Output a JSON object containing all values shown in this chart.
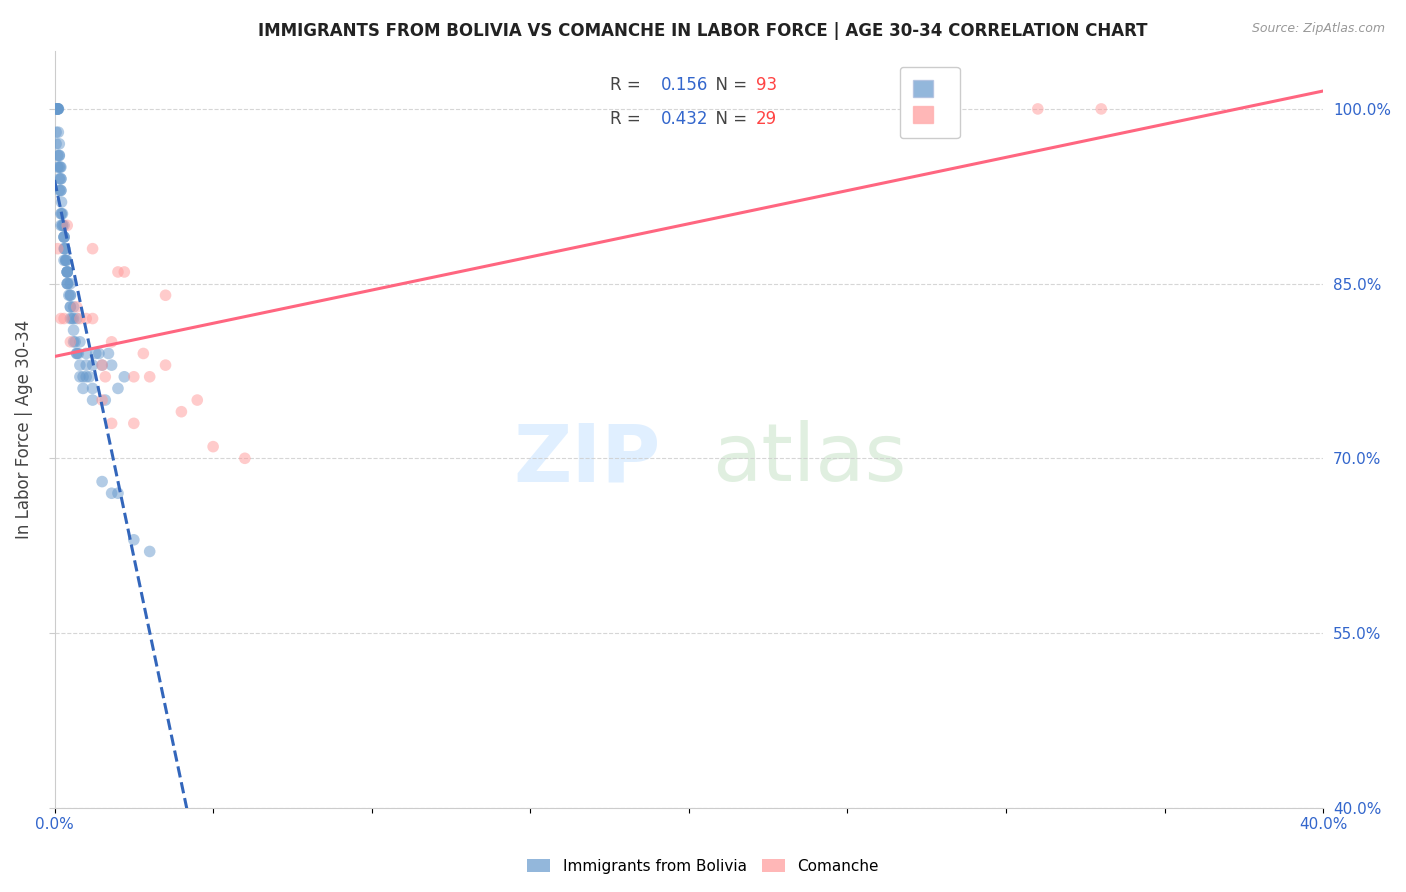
{
  "title": "IMMIGRANTS FROM BOLIVIA VS COMANCHE IN LABOR FORCE | AGE 30-34 CORRELATION CHART",
  "source": "Source: ZipAtlas.com",
  "ylabel": "In Labor Force | Age 30-34",
  "xlim": [
    0.0,
    0.4
  ],
  "ylim": [
    0.4,
    1.05
  ],
  "xticks": [
    0.0,
    0.05,
    0.1,
    0.15,
    0.2,
    0.25,
    0.3,
    0.35,
    0.4
  ],
  "xticklabels": [
    "0.0%",
    "",
    "",
    "",
    "",
    "",
    "",
    "",
    "40.0%"
  ],
  "yticks": [
    0.4,
    0.55,
    0.7,
    0.85,
    1.0
  ],
  "yticklabels": [
    "40.0%",
    "55.0%",
    "70.0%",
    "85.0%",
    "100.0%"
  ],
  "bolivia_R": 0.156,
  "bolivia_N": 93,
  "comanche_R": 0.432,
  "comanche_N": 29,
  "bolivia_color": "#6699CC",
  "comanche_color": "#FF9999",
  "bolivia_line_color": "#3366BB",
  "comanche_line_color": "#FF6680",
  "bolivia_scatter_alpha": 0.5,
  "comanche_scatter_alpha": 0.5,
  "marker_size": 70,
  "bolivia_x": [
    0.0005,
    0.0005,
    0.0008,
    0.001,
    0.001,
    0.001,
    0.001,
    0.0012,
    0.0012,
    0.0012,
    0.0015,
    0.0015,
    0.0015,
    0.0015,
    0.0018,
    0.002,
    0.002,
    0.002,
    0.002,
    0.002,
    0.0022,
    0.0022,
    0.0025,
    0.0025,
    0.0025,
    0.003,
    0.003,
    0.003,
    0.003,
    0.0032,
    0.0032,
    0.0035,
    0.0035,
    0.0038,
    0.004,
    0.004,
    0.004,
    0.004,
    0.004,
    0.0042,
    0.0045,
    0.005,
    0.005,
    0.005,
    0.005,
    0.0055,
    0.006,
    0.006,
    0.006,
    0.0065,
    0.007,
    0.007,
    0.0075,
    0.008,
    0.008,
    0.009,
    0.009,
    0.01,
    0.01,
    0.011,
    0.012,
    0.012,
    0.013,
    0.014,
    0.015,
    0.016,
    0.017,
    0.018,
    0.02,
    0.022,
    0.0005,
    0.0005,
    0.001,
    0.001,
    0.0015,
    0.0015,
    0.002,
    0.002,
    0.003,
    0.003,
    0.004,
    0.005,
    0.005,
    0.006,
    0.007,
    0.008,
    0.01,
    0.012,
    0.015,
    0.018,
    0.02,
    0.025,
    0.03
  ],
  "bolivia_y": [
    1.0,
    1.0,
    1.0,
    1.0,
    1.0,
    1.0,
    1.0,
    1.0,
    1.0,
    0.98,
    0.97,
    0.96,
    0.96,
    0.95,
    0.95,
    0.95,
    0.94,
    0.94,
    0.93,
    0.93,
    0.92,
    0.91,
    0.91,
    0.9,
    0.9,
    0.9,
    0.89,
    0.89,
    0.89,
    0.88,
    0.88,
    0.87,
    0.87,
    0.87,
    0.86,
    0.86,
    0.86,
    0.85,
    0.85,
    0.85,
    0.84,
    0.84,
    0.83,
    0.83,
    0.82,
    0.82,
    0.82,
    0.81,
    0.8,
    0.8,
    0.79,
    0.79,
    0.79,
    0.78,
    0.77,
    0.77,
    0.76,
    0.78,
    0.77,
    0.77,
    0.76,
    0.75,
    0.79,
    0.79,
    0.78,
    0.75,
    0.79,
    0.78,
    0.76,
    0.77,
    0.98,
    0.97,
    0.96,
    0.95,
    0.94,
    0.93,
    0.91,
    0.9,
    0.88,
    0.87,
    0.86,
    0.85,
    0.84,
    0.83,
    0.82,
    0.8,
    0.79,
    0.78,
    0.68,
    0.67,
    0.67,
    0.63,
    0.62
  ],
  "comanche_x": [
    0.001,
    0.002,
    0.003,
    0.004,
    0.005,
    0.007,
    0.008,
    0.01,
    0.012,
    0.015,
    0.016,
    0.018,
    0.02,
    0.022,
    0.025,
    0.028,
    0.03,
    0.035,
    0.04,
    0.045,
    0.05,
    0.06,
    0.012,
    0.015,
    0.018,
    0.025,
    0.035,
    0.31,
    0.33
  ],
  "comanche_y": [
    0.88,
    0.82,
    0.82,
    0.9,
    0.8,
    0.83,
    0.82,
    0.82,
    0.88,
    0.78,
    0.77,
    0.8,
    0.86,
    0.86,
    0.77,
    0.79,
    0.77,
    0.84,
    0.74,
    0.75,
    0.71,
    0.7,
    0.82,
    0.75,
    0.73,
    0.73,
    0.78,
    1.0,
    1.0
  ]
}
